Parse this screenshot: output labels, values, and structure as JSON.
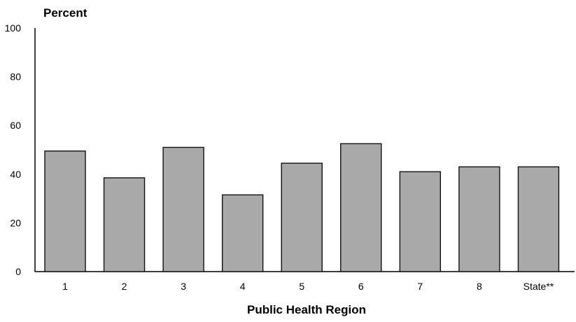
{
  "chart_data": {
    "type": "bar",
    "title": "",
    "ylabel": "Percent",
    "xlabel": "Public Health Region",
    "categories": [
      "1",
      "2",
      "3",
      "4",
      "5",
      "6",
      "7",
      "8",
      "State**"
    ],
    "values": [
      49.5,
      38.5,
      51,
      31.5,
      44.5,
      52.5,
      41,
      43,
      43
    ],
    "ylim": [
      0,
      100
    ],
    "yticks": [
      "0",
      "20",
      "40",
      "60",
      "80",
      "100"
    ],
    "grid": false,
    "bar_color": "#a9a9a9"
  }
}
